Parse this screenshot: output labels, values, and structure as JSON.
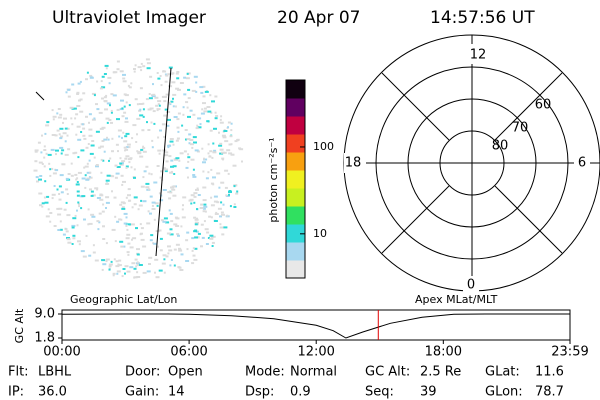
{
  "header": {
    "instrument": "Ultraviolet Imager",
    "date": "20 Apr 07",
    "time": "14:57:56 UT"
  },
  "colorbar": {
    "label": "photon cm⁻²s⁻¹",
    "log": true,
    "lim": [
      3.1,
      590
    ],
    "ticks": [
      10,
      100
    ],
    "colors": [
      "#e8e8e8",
      "#a8d8f0",
      "#30d8d8",
      "#30e060",
      "#c8f020",
      "#f0f020",
      "#f8a010",
      "#f04020",
      "#c00040",
      "#600060",
      "#100010"
    ]
  },
  "panels": {
    "left": "Geographic Lat/Lon",
    "right": "Apex MLat/MLT"
  },
  "polar": {
    "mlt_labels": [
      "12",
      "18",
      "6",
      "0"
    ],
    "lat_labels": [
      "60",
      "70",
      "80"
    ]
  },
  "chart_data": {
    "type": "line",
    "ylabel": "GC Alt",
    "x": [
      0,
      3,
      5,
      6,
      8,
      10,
      12,
      12.8,
      13.4,
      14.2,
      15.5,
      17,
      18.5,
      20,
      23.98
    ],
    "values": [
      8.9,
      9.0,
      9.0,
      8.9,
      8.5,
      7.6,
      5.6,
      4.0,
      1.8,
      3.6,
      6.2,
      8.0,
      8.9,
      9.0,
      9.0
    ],
    "color": "#000000",
    "current_time": 14.93,
    "current_color": "#e00000",
    "xlim": [
      0,
      23.98
    ],
    "ylim": [
      1.8,
      9.0
    ],
    "xticks": [
      {
        "value": 0,
        "label": "00:00"
      },
      {
        "value": 6,
        "label": "06:00"
      },
      {
        "value": 12,
        "label": "12:00"
      },
      {
        "value": 18,
        "label": "18:00"
      },
      {
        "value": 23.98,
        "label": "23:59"
      }
    ],
    "yticks": [
      {
        "value": 9.0,
        "label": "9.0"
      },
      1.8
    ]
  },
  "footer": {
    "rows": [
      [
        [
          "Flt:",
          "LBHL"
        ],
        [
          "Door:",
          "Open"
        ],
        [
          "Mode:",
          "Normal"
        ],
        [
          "GC Alt:",
          "2.5 Re"
        ],
        [
          "GLat:",
          "11.6"
        ]
      ],
      [
        [
          "IP:",
          "36.0"
        ],
        [
          "Gain:",
          "14"
        ],
        [
          "Dsp:",
          "0.9"
        ],
        [
          "Seq:",
          "39"
        ],
        [
          "GLon:",
          "78.7"
        ]
      ]
    ]
  }
}
